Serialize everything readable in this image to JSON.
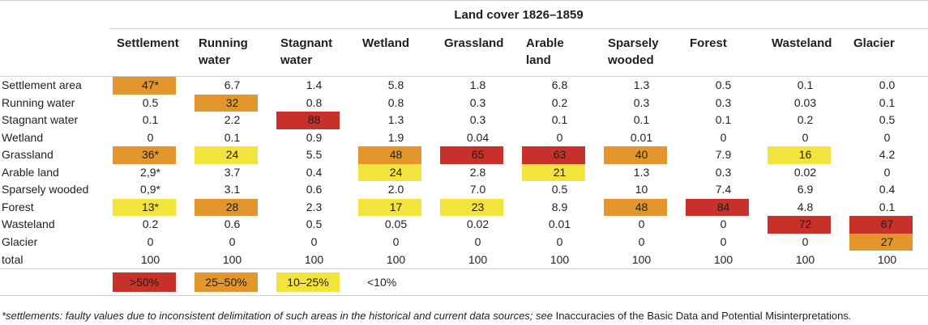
{
  "title": "Land cover 1826–1859",
  "colors": {
    "red": "#c8302a",
    "orange": "#e3962b",
    "yellow": "#f2e43c"
  },
  "columns": [
    [
      "Settlement",
      ""
    ],
    [
      "Running",
      "water"
    ],
    [
      "Stagnant",
      "water"
    ],
    [
      "Wetland",
      ""
    ],
    [
      "Grassland",
      ""
    ],
    [
      "Arable",
      "land"
    ],
    [
      "Sparsely",
      "wooded"
    ],
    [
      "Forest",
      ""
    ],
    [
      "Wasteland",
      ""
    ],
    [
      "Glacier",
      ""
    ]
  ],
  "rows": [
    {
      "label": "Settlement area",
      "values": [
        "47*",
        "6.7",
        "1.4",
        "5.8",
        "1.8",
        "6.8",
        "1.3",
        "0.5",
        "0.1",
        "0.0"
      ],
      "levels": [
        "orange",
        "",
        "",
        "",
        "",
        "",
        "",
        "",
        "",
        ""
      ]
    },
    {
      "label": "Running water",
      "values": [
        "0.5",
        "32",
        "0.8",
        "0.8",
        "0.3",
        "0.2",
        "0.3",
        "0.3",
        "0.03",
        "0.1"
      ],
      "levels": [
        "",
        "orange",
        "",
        "",
        "",
        "",
        "",
        "",
        "",
        ""
      ]
    },
    {
      "label": "Stagnant water",
      "values": [
        "0.1",
        "2.2",
        "88",
        "1.3",
        "0.3",
        "0.1",
        "0.1",
        "0.1",
        "0.2",
        "0.5"
      ],
      "levels": [
        "",
        "",
        "red",
        "",
        "",
        "",
        "",
        "",
        "",
        ""
      ]
    },
    {
      "label": "Wetland",
      "values": [
        "0",
        "0.1",
        "0.9",
        "1.9",
        "0.04",
        "0",
        "0.01",
        "0",
        "0",
        "0"
      ],
      "levels": [
        "",
        "",
        "",
        "",
        "",
        "",
        "",
        "",
        "",
        ""
      ]
    },
    {
      "label": "Grassland",
      "values": [
        "36*",
        "24",
        "5.5",
        "48",
        "65",
        "63",
        "40",
        "7.9",
        "16",
        "4.2"
      ],
      "levels": [
        "orange",
        "yellow",
        "",
        "orange",
        "red",
        "red",
        "orange",
        "",
        "yellow",
        ""
      ]
    },
    {
      "label": "Arable land",
      "values": [
        "2,9*",
        "3.7",
        "0.4",
        "24",
        "2.8",
        "21",
        "1.3",
        "0.3",
        "0.02",
        "0"
      ],
      "levels": [
        "",
        "",
        "",
        "yellow",
        "",
        "yellow",
        "",
        "",
        "",
        ""
      ]
    },
    {
      "label": "Sparsely wooded",
      "values": [
        "0,9*",
        "3.1",
        "0.6",
        "2.0",
        "7.0",
        "0.5",
        "10",
        "7.4",
        "6.9",
        "0.4"
      ],
      "levels": [
        "",
        "",
        "",
        "",
        "",
        "",
        "",
        "",
        "",
        ""
      ]
    },
    {
      "label": "Forest",
      "values": [
        "13*",
        "28",
        "2.3",
        "17",
        "23",
        "8.9",
        "48",
        "84",
        "4.8",
        "0.1"
      ],
      "levels": [
        "yellow",
        "orange",
        "",
        "yellow",
        "yellow",
        "",
        "orange",
        "red",
        "",
        ""
      ]
    },
    {
      "label": "Wasteland",
      "values": [
        "0.2",
        "0.6",
        "0.5",
        "0.05",
        "0.02",
        "0.01",
        "0",
        "0",
        "72",
        "67"
      ],
      "levels": [
        "",
        "",
        "",
        "",
        "",
        "",
        "",
        "",
        "red",
        "red"
      ]
    },
    {
      "label": "Glacier",
      "values": [
        "0",
        "0",
        "0",
        "0",
        "0",
        "0",
        "0",
        "0",
        "0",
        "27"
      ],
      "levels": [
        "",
        "",
        "",
        "",
        "",
        "",
        "",
        "",
        "",
        "orange"
      ]
    }
  ],
  "total": {
    "label": "total",
    "values": [
      "100",
      "100",
      "100",
      "100",
      "100",
      "100",
      "100",
      "100",
      "100",
      "100"
    ]
  },
  "legend": [
    {
      "label": ">50%",
      "level": "red"
    },
    {
      "label": "25–50%",
      "level": "orange"
    },
    {
      "label": "10–25%",
      "level": "yellow"
    },
    {
      "label": "<10%",
      "level": ""
    }
  ],
  "footnote": {
    "italic_a": "*settlements: faulty values due to inconsistent delimitation of such areas in the historical and current data sources; see ",
    "link": "Inaccuracies of the Basic Data and Potential Misinterpretations",
    "italic_b": "."
  }
}
